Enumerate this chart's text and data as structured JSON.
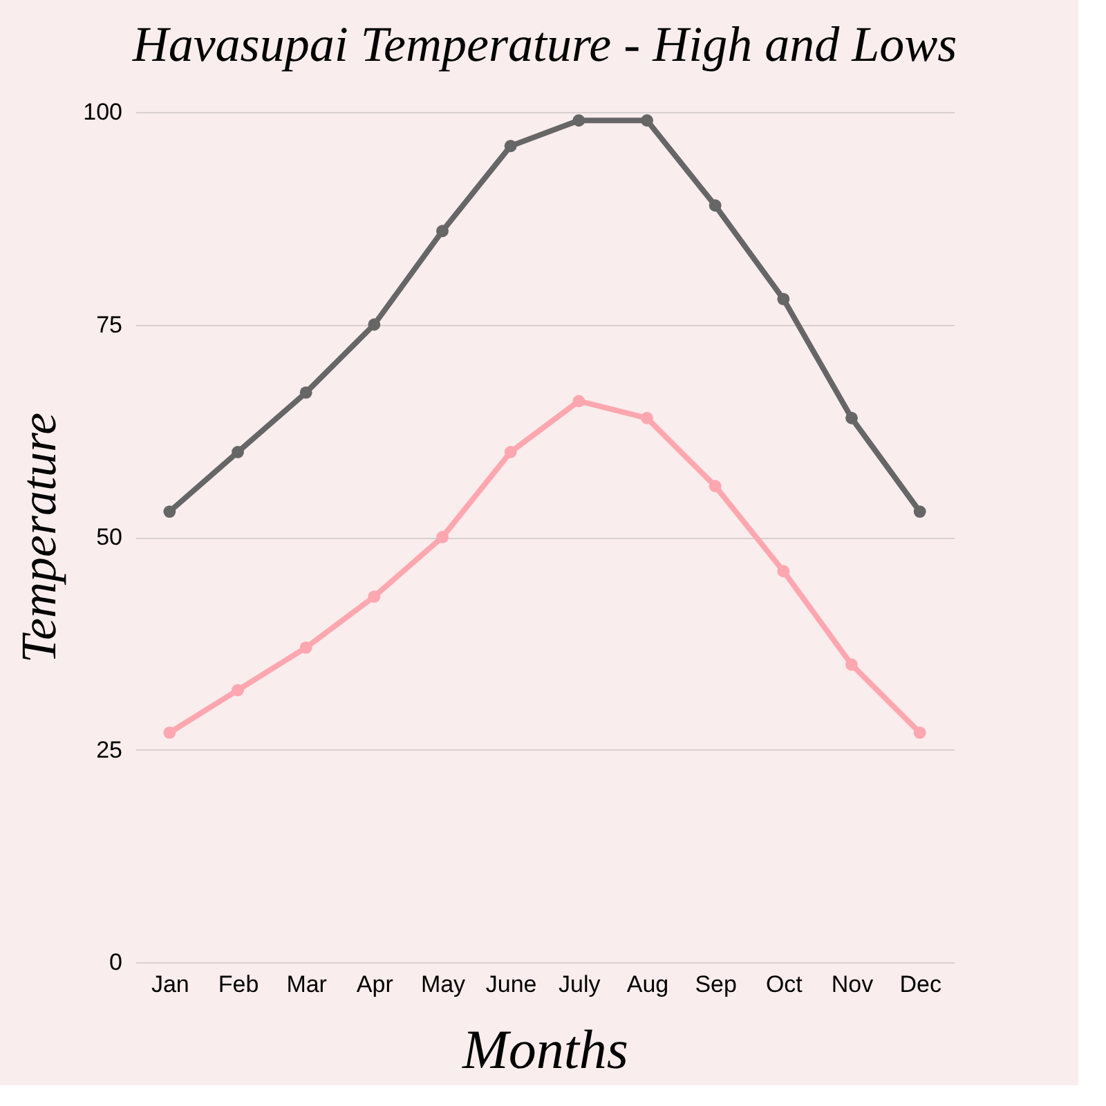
{
  "chart_data": {
    "type": "line",
    "title": "Havasupai Temperature - High and Lows",
    "xlabel": "Months",
    "ylabel": "Temperature",
    "categories": [
      "Jan",
      "Feb",
      "Mar",
      "Apr",
      "May",
      "June",
      "July",
      "Aug",
      "Sep",
      "Oct",
      "Nov",
      "Dec"
    ],
    "series": [
      {
        "color": "#666666",
        "values": [
          53,
          60,
          67,
          75,
          86,
          96,
          99,
          99,
          89,
          78,
          64,
          53
        ]
      },
      {
        "color": "#ffa7b0",
        "values": [
          27,
          32,
          37,
          43,
          50,
          60,
          66,
          64,
          56,
          46,
          35,
          27
        ]
      }
    ],
    "ylim": [
      0,
      100
    ],
    "yticks": [
      0,
      25,
      50,
      75,
      100
    ],
    "grid": "y",
    "legend": false,
    "marker": "circle",
    "line_style": "solid"
  }
}
